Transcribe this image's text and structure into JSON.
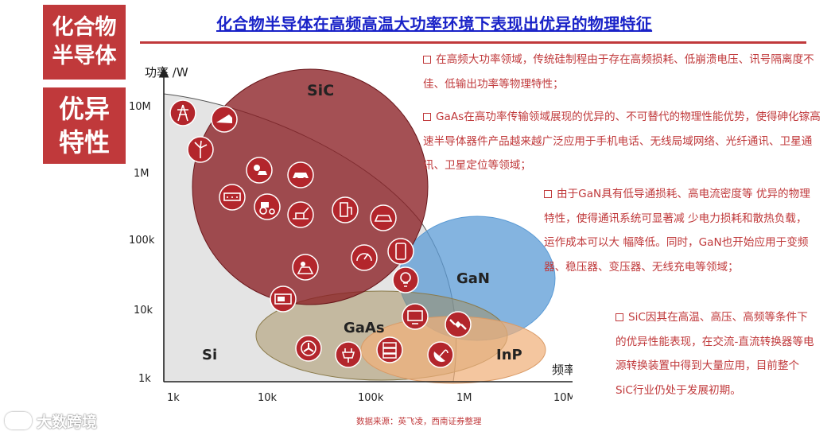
{
  "side_boxes": {
    "box1": [
      "化合物",
      "半导体"
    ],
    "box2": [
      "优异",
      "特性"
    ]
  },
  "title": "化合物半导体在高频高温大功率环境下表现出优异的物理特征",
  "axes": {
    "y_label": "功率 /W",
    "x_label": "频率 /GHz",
    "y_ticks": [
      "10M",
      "1M",
      "100k",
      "10k",
      "1k"
    ],
    "x_ticks": [
      "1k",
      "10k",
      "100k",
      "1M",
      "10M"
    ]
  },
  "regions": [
    {
      "label": "Si",
      "color": "#6b6b6b"
    },
    {
      "label": "SiC",
      "color": "#8b1f24"
    },
    {
      "label": "GaN",
      "color": "#5b9bd5"
    },
    {
      "label": "GaAs",
      "color": "#a08a55"
    },
    {
      "label": "InP",
      "color": "#e8a56a"
    }
  ],
  "icons": [
    "power-tower-icon",
    "train-icon",
    "wind-turbine-icon",
    "solar-sun-icon",
    "car-icon",
    "rail-car-icon",
    "tractor-icon",
    "crane-truck-icon",
    "ev-charger-icon",
    "ev-car-icon",
    "phone-icon",
    "solar-panel-icon",
    "gauge-icon",
    "led-bulb-icon",
    "microwave-icon",
    "monitor-icon",
    "satellite-icon",
    "fan-icon",
    "plug-icon",
    "server-icon",
    "satellite-dish-icon"
  ],
  "paragraphs": [
    "在高频大功率领域，传统硅制程由于存在高频损耗、低崩溃电压、讯号隔离度不佳、低输出功率等物理特性；",
    "GaAs在高功率传输领域展现的优异的、不可替代的物理性能优势，使得砷化镓高速半导体器件产品越来越广泛应用于手机电话、无线局域网络、光纤通讯、卫星通讯、卫星定位等领域；",
    "由于GaN具有低导通损耗、高电流密度等 优异的物理特性，使得通讯系统可显著减 少电力损耗和散热负载，运作成本可以大 幅降低。同时，GaN也开始应用于变频器、稳压器、变压器、无线充电等领域；",
    "SiC因其在高温、高压、高频等条件下的优异性能表现，在交流-直流转换器等电源转换装置中得到大量应用，目前整个SiC行业仍处于发展初期。"
  ],
  "source": "数据来源：英飞凌，西南证券整理",
  "watermark": "大数跨境"
}
